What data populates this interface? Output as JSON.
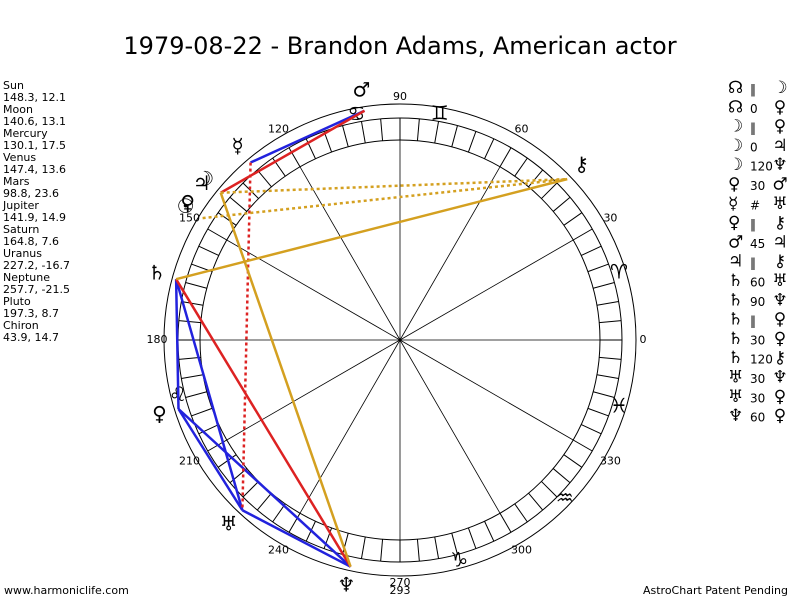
{
  "title": "1979-08-22 - Brandon Adams, American actor",
  "planets": [
    {
      "name": "Sun",
      "glyph": "☉",
      "longitude": 148.3,
      "latitude": 12.1
    },
    {
      "name": "Moon",
      "glyph": "☽",
      "longitude": 140.6,
      "latitude": 13.1
    },
    {
      "name": "Mercury",
      "glyph": "☿",
      "longitude": 130.1,
      "latitude": 17.5
    },
    {
      "name": "Venus",
      "glyph": "♀",
      "longitude": 147.4,
      "latitude": 13.6
    },
    {
      "name": "Mars",
      "glyph": "♂",
      "longitude": 98.8,
      "latitude": 23.6
    },
    {
      "name": "Jupiter",
      "glyph": "♃",
      "longitude": 141.9,
      "latitude": 14.9
    },
    {
      "name": "Saturn",
      "glyph": "♄",
      "longitude": 164.8,
      "latitude": 7.6
    },
    {
      "name": "Uranus",
      "glyph": "♅",
      "longitude": 227.2,
      "latitude": -16.7
    },
    {
      "name": "Neptune",
      "glyph": "♆",
      "longitude": 257.7,
      "latitude": -21.5
    },
    {
      "name": "Pluto",
      "glyph": "♀",
      "longitude": 197.3,
      "latitude": 8.7
    },
    {
      "name": "Chiron",
      "glyph": "⚷",
      "longitude": 43.9,
      "latitude": 14.7
    }
  ],
  "aspects": [
    {
      "a": "☊",
      "aspect": "‖",
      "b": "☽"
    },
    {
      "a": "☊",
      "aspect": "0",
      "b": "♀"
    },
    {
      "a": "☽",
      "aspect": "‖",
      "b": "♀"
    },
    {
      "a": "☽",
      "aspect": "0",
      "b": "♃"
    },
    {
      "a": "☽",
      "aspect": "120",
      "b": "♆"
    },
    {
      "a": "♀",
      "aspect": "30",
      "b": "♂"
    },
    {
      "a": "☿",
      "aspect": "#",
      "b": "♅"
    },
    {
      "a": "♀",
      "aspect": "‖",
      "b": "⚷"
    },
    {
      "a": "♂",
      "aspect": "45",
      "b": "♃"
    },
    {
      "a": "♃",
      "aspect": "‖",
      "b": "⚷"
    },
    {
      "a": "♄",
      "aspect": "60",
      "b": "♅"
    },
    {
      "a": "♄",
      "aspect": "90",
      "b": "♆"
    },
    {
      "a": "♄",
      "aspect": "‖",
      "b": "♀"
    },
    {
      "a": "♄",
      "aspect": "30",
      "b": "♀"
    },
    {
      "a": "♄",
      "aspect": "120",
      "b": "⚷"
    },
    {
      "a": "♅",
      "aspect": "30",
      "b": "♆"
    },
    {
      "a": "♅",
      "aspect": "30",
      "b": "♀"
    },
    {
      "a": "♆",
      "aspect": "60",
      "b": "♀"
    }
  ],
  "degree_labels": [
    0,
    30,
    60,
    90,
    120,
    150,
    180,
    210,
    240,
    270,
    300,
    330
  ],
  "ascendant_label": "293",
  "signs": [
    "♋",
    "♊",
    "♈",
    "♓",
    "♒",
    "♑",
    "♌"
  ],
  "footer_left": "www.harmoniclife.com",
  "footer_right": "AstroChart Patent Pending"
}
